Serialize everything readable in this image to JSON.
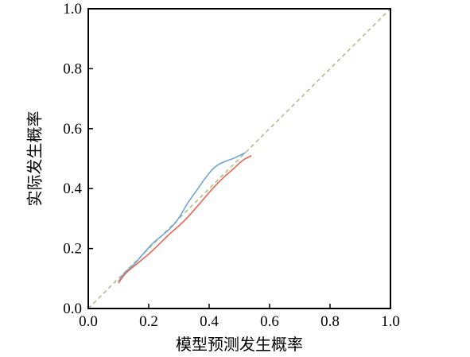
{
  "chart_data": {
    "type": "line",
    "xlabel": "模型预测发生概率",
    "ylabel": "实际发生概率",
    "xlim": [
      0.0,
      1.0
    ],
    "ylim": [
      0.0,
      1.0
    ],
    "x_ticks": [
      "0.0",
      "0.2",
      "0.4",
      "0.6",
      "0.8",
      "1.0"
    ],
    "y_ticks": [
      "0.0",
      "0.2",
      "0.4",
      "0.6",
      "0.8",
      "1.0"
    ],
    "grid": false,
    "legend": "none",
    "reference_line": {
      "from": [
        0,
        0
      ],
      "to": [
        1,
        1
      ],
      "color": "#a8b88a",
      "style": "dashed"
    },
    "series": [
      {
        "color": "#6fa3d8",
        "x": [
          0.1,
          0.12,
          0.15,
          0.18,
          0.21,
          0.24,
          0.27,
          0.3,
          0.33,
          0.36,
          0.39,
          0.42,
          0.45,
          0.48,
          0.51,
          0.52
        ],
        "y": [
          0.09,
          0.12,
          0.145,
          0.18,
          0.215,
          0.24,
          0.265,
          0.3,
          0.355,
          0.395,
          0.44,
          0.475,
          0.49,
          0.5,
          0.515,
          0.52
        ]
      },
      {
        "color": "#e8664a",
        "x": [
          0.1,
          0.12,
          0.15,
          0.18,
          0.21,
          0.24,
          0.27,
          0.3,
          0.33,
          0.36,
          0.39,
          0.42,
          0.45,
          0.48,
          0.51,
          0.54
        ],
        "y": [
          0.085,
          0.115,
          0.14,
          0.165,
          0.19,
          0.22,
          0.25,
          0.275,
          0.305,
          0.34,
          0.375,
          0.41,
          0.44,
          0.465,
          0.495,
          0.51
        ]
      }
    ]
  }
}
